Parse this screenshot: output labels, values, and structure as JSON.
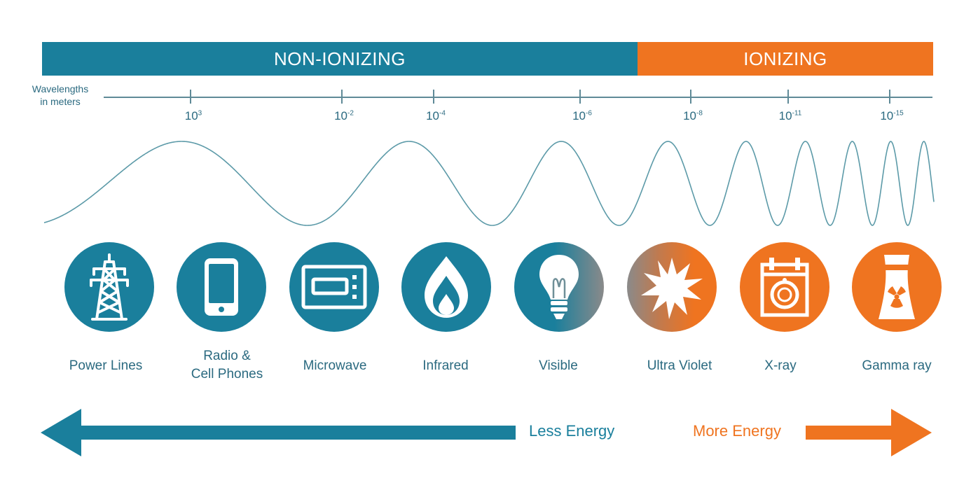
{
  "bands": {
    "non_ionizing": "NON-IONIZING",
    "ionizing": "IONIZING"
  },
  "axis": {
    "title_line1": "Wavelengths",
    "title_line2": "in meters",
    "ticks": [
      {
        "base": "10",
        "exp": "3"
      },
      {
        "base": "10",
        "exp": "-2"
      },
      {
        "base": "10",
        "exp": "-4"
      },
      {
        "base": "10",
        "exp": "-6"
      },
      {
        "base": "10",
        "exp": "-8"
      },
      {
        "base": "10",
        "exp": "-11"
      },
      {
        "base": "10",
        "exp": "-15"
      }
    ]
  },
  "spectrum": [
    {
      "label": "Power Lines",
      "icon": "power-tower-icon"
    },
    {
      "label": "Radio &",
      "label2": "Cell Phones",
      "icon": "mobile-phone-icon"
    },
    {
      "label": "Microwave",
      "icon": "microwave-oven-icon"
    },
    {
      "label": "Infrared",
      "icon": "flame-icon"
    },
    {
      "label": "Visible",
      "icon": "light-bulb-icon"
    },
    {
      "label": "Ultra Violet",
      "icon": "sun-burst-icon"
    },
    {
      "label": "X-ray",
      "icon": "xray-film-icon"
    },
    {
      "label": "Gamma ray",
      "icon": "nuclear-plant-icon"
    }
  ],
  "energy": {
    "less": "Less Energy",
    "more": "More Energy"
  },
  "colors": {
    "non_ionizing": "#1a7f9c",
    "ionizing": "#ef7420",
    "text": "#2b6a80",
    "wave": "#5c9aa8"
  }
}
